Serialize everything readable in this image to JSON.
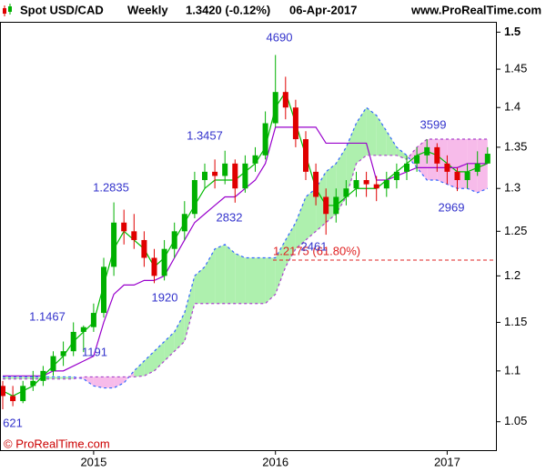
{
  "chart_data": {
    "type": "candlestick",
    "title": "Spot USD/CAD",
    "period": "Weekly",
    "last": "1.3420 (-0.12%)",
    "date": "06-Apr-2017",
    "source": "www.ProRealTime.com",
    "copyright": "© ProRealTime.com",
    "log_scale": true,
    "ylim": [
      1.023,
      1.513
    ],
    "yticks": [
      1.05,
      1.1,
      1.15,
      1.2,
      1.25,
      1.3,
      1.35,
      1.4,
      1.45,
      1.5
    ],
    "categories": [
      null,
      null,
      null,
      null,
      null,
      null,
      null,
      null,
      null,
      "2015",
      null,
      null,
      null,
      null,
      null,
      null,
      null,
      null,
      null,
      null,
      null,
      null,
      null,
      null,
      null,
      null,
      null,
      "2016",
      null,
      null,
      null,
      null,
      null,
      null,
      null,
      null,
      null,
      null,
      null,
      null,
      null,
      null,
      null,
      null,
      "2017",
      null,
      null,
      null,
      null
    ],
    "up_color": "#00b000",
    "down_color": "#e00000",
    "open": [
      1.085,
      1.075,
      1.07,
      1.085,
      1.09,
      1.1,
      1.115,
      1.12,
      1.14,
      1.145,
      1.16,
      1.21,
      1.26,
      1.25,
      1.24,
      1.22,
      1.2,
      1.23,
      1.25,
      1.27,
      1.31,
      1.32,
      1.315,
      1.33,
      1.3,
      1.33,
      1.34,
      1.38,
      1.42,
      1.4,
      1.36,
      1.32,
      1.29,
      1.27,
      1.29,
      1.3,
      1.31,
      1.305,
      1.3,
      1.31,
      1.32,
      1.33,
      1.34,
      1.35,
      1.33,
      1.32,
      1.31,
      1.32,
      1.33
    ],
    "high": [
      1.09,
      1.085,
      1.09,
      1.1,
      1.105,
      1.12,
      1.13,
      1.15,
      1.1467,
      1.17,
      1.22,
      1.2835,
      1.275,
      1.27,
      1.25,
      1.23,
      1.24,
      1.26,
      1.285,
      1.32,
      1.33,
      1.335,
      1.3457,
      1.335,
      1.34,
      1.35,
      1.395,
      1.469,
      1.44,
      1.41,
      1.37,
      1.33,
      1.3,
      1.3,
      1.31,
      1.32,
      1.32,
      1.315,
      1.32,
      1.33,
      1.34,
      1.35,
      1.3599,
      1.355,
      1.34,
      1.325,
      1.33,
      1.345,
      1.35
    ],
    "low": [
      1.0621,
      1.065,
      1.068,
      1.08,
      1.085,
      1.095,
      1.105,
      1.115,
      1.1191,
      1.14,
      1.155,
      1.2,
      1.235,
      1.23,
      1.21,
      1.192,
      1.195,
      1.22,
      1.24,
      1.265,
      1.3,
      1.3,
      1.305,
      1.2832,
      1.295,
      1.32,
      1.335,
      1.375,
      1.385,
      1.35,
      1.31,
      1.28,
      1.2461,
      1.26,
      1.28,
      1.29,
      1.29,
      1.285,
      1.29,
      1.3,
      1.31,
      1.32,
      1.33,
      1.32,
      1.305,
      1.2969,
      1.3,
      1.315,
      1.33
    ],
    "close": [
      1.075,
      1.07,
      1.085,
      1.09,
      1.1,
      1.115,
      1.12,
      1.14,
      1.145,
      1.16,
      1.21,
      1.26,
      1.25,
      1.24,
      1.22,
      1.2,
      1.23,
      1.25,
      1.27,
      1.31,
      1.32,
      1.315,
      1.33,
      1.3,
      1.33,
      1.34,
      1.38,
      1.42,
      1.4,
      1.36,
      1.32,
      1.29,
      1.27,
      1.29,
      1.3,
      1.31,
      1.305,
      1.3,
      1.31,
      1.32,
      1.33,
      1.34,
      1.35,
      1.33,
      1.32,
      1.31,
      1.32,
      1.33,
      1.342
    ],
    "series": [
      {
        "color": "#00bb00",
        "dashed": false,
        "values": [
          1.08,
          1.075,
          1.08,
          1.085,
          1.095,
          1.105,
          1.115,
          1.13,
          1.14,
          1.15,
          1.19,
          1.23,
          1.25,
          1.24,
          1.23,
          1.21,
          1.22,
          1.24,
          1.26,
          1.28,
          1.3,
          1.31,
          1.31,
          1.31,
          1.32,
          1.33,
          1.35,
          1.4,
          1.42,
          1.38,
          1.34,
          1.3,
          1.28,
          1.28,
          1.29,
          1.3,
          1.3,
          1.3,
          1.31,
          1.32,
          1.33,
          1.34,
          1.345,
          1.34,
          1.33,
          1.32,
          1.32,
          1.325,
          1.33
        ]
      },
      {
        "color": "#9900cc",
        "dashed": false,
        "values": [
          1.095,
          1.095,
          1.095,
          1.095,
          1.095,
          1.1,
          1.1,
          1.105,
          1.11,
          1.115,
          1.15,
          1.18,
          1.19,
          1.19,
          1.195,
          1.195,
          1.2,
          1.22,
          1.24,
          1.26,
          1.27,
          1.28,
          1.29,
          1.29,
          1.3,
          1.31,
          1.33,
          1.375,
          1.375,
          1.375,
          1.375,
          1.375,
          1.355,
          1.355,
          1.355,
          1.355,
          1.355,
          1.31,
          1.31,
          1.315,
          1.32,
          1.325,
          1.325,
          1.325,
          1.325,
          1.325,
          1.33,
          1.33,
          1.33
        ]
      },
      {
        "color": "#3366ff",
        "dashed": true,
        "values": [
          1.094,
          1.094,
          1.094,
          1.094,
          1.094,
          1.094,
          1.094,
          1.094,
          1.092,
          1.085,
          1.083,
          1.083,
          1.088,
          1.1,
          1.11,
          1.12,
          1.13,
          1.14,
          1.16,
          1.2,
          1.21,
          1.23,
          1.235,
          1.225,
          1.22,
          1.22,
          1.22,
          1.22,
          1.24,
          1.26,
          1.29,
          1.3,
          1.32,
          1.33,
          1.35,
          1.38,
          1.4,
          1.39,
          1.37,
          1.35,
          1.34,
          1.325,
          1.31,
          1.31,
          1.305,
          1.3,
          1.3,
          1.295,
          1.3
        ]
      },
      {
        "color": "#aa44cc",
        "dashed": true,
        "values": [
          1.092,
          1.092,
          1.092,
          1.092,
          1.092,
          1.092,
          1.092,
          1.092,
          1.094,
          1.094,
          1.094,
          1.094,
          1.094,
          1.094,
          1.095,
          1.1,
          1.11,
          1.12,
          1.13,
          1.17,
          1.17,
          1.17,
          1.17,
          1.17,
          1.17,
          1.17,
          1.17,
          1.18,
          1.21,
          1.23,
          1.24,
          1.25,
          1.26,
          1.27,
          1.29,
          1.33,
          1.34,
          1.34,
          1.34,
          1.34,
          1.335,
          1.35,
          1.36,
          1.36,
          1.36,
          1.36,
          1.36,
          1.36,
          1.36
        ]
      }
    ],
    "cloud_colors": [
      "#aef0ae",
      "#f7bbea"
    ],
    "levels": [
      {
        "value": 1.2175,
        "label": "1.2175 (61.80%)",
        "color": "#e02020"
      }
    ],
    "annotations": [
      "4690",
      "1.3457",
      "1.2835",
      "2832",
      "1920",
      "1.1467",
      "1191",
      "621",
      "2461",
      "3599",
      "2969"
    ],
    "annotation_color": "#3333cc"
  }
}
